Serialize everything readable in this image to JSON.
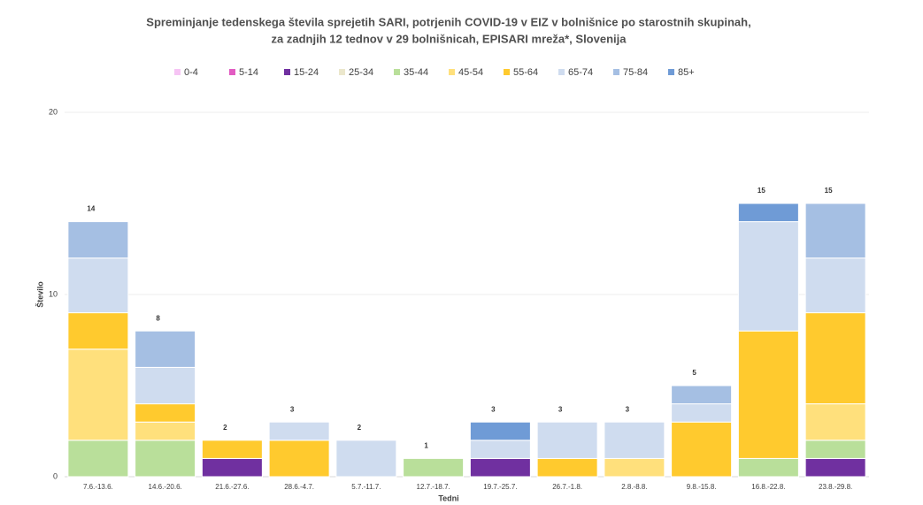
{
  "chart_data": {
    "type": "stacked_bar",
    "title": [
      "Spreminjanje tedenskega števila sprejetih SARI, potrjenih COVID-19 v EIZ v bolnišnice po starostnih skupinah,",
      "za zadnjih 12 tednov v 29 bolnišnicah, EPISARI mreža*, Slovenija"
    ],
    "x_label": "Tedni",
    "y_label": "Število",
    "categories": [
      "7.6.-13.6.",
      "14.6.-20.6.",
      "21.6.-27.6.",
      "28.6.-4.7.",
      "5.7.-11.7.",
      "12.7.-18.7.",
      "19.7.-25.7.",
      "26.7.-1.8.",
      "2.8.-8.8.",
      "9.8.-15.8.",
      "16.8.-22.8.",
      "23.8.-29.8."
    ],
    "series": [
      {
        "name": "0-4",
        "color": "#f6c4f4",
        "values": [
          0,
          0,
          0,
          0,
          0,
          0,
          0,
          0,
          0,
          0,
          0,
          0
        ]
      },
      {
        "name": "5-14",
        "color": "#e25cc2",
        "values": [
          0,
          0,
          0,
          0,
          0,
          0,
          0,
          0,
          0,
          0,
          0,
          0
        ]
      },
      {
        "name": "15-24",
        "color": "#7030a0",
        "values": [
          0,
          0,
          1,
          0,
          0,
          0,
          1,
          0,
          0,
          0,
          0,
          1
        ]
      },
      {
        "name": "25-34",
        "color": "#ebe7cc",
        "values": [
          0,
          0,
          0,
          0,
          0,
          0,
          0,
          0,
          0,
          0,
          0,
          0
        ]
      },
      {
        "name": "35-44",
        "color": "#b9df9a",
        "values": [
          2,
          2,
          0,
          0,
          0,
          1,
          0,
          0,
          0,
          0,
          1,
          1
        ]
      },
      {
        "name": "45-54",
        "color": "#ffe07c",
        "values": [
          5,
          1,
          0,
          0,
          0,
          0,
          0,
          0,
          1,
          0,
          0,
          2
        ]
      },
      {
        "name": "55-64",
        "color": "#ffca2e",
        "values": [
          2,
          1,
          1,
          2,
          0,
          0,
          0,
          1,
          0,
          3,
          7,
          5
        ]
      },
      {
        "name": "65-74",
        "color": "#cfdcef",
        "values": [
          3,
          2,
          0,
          1,
          2,
          0,
          1,
          2,
          2,
          1,
          6,
          3
        ]
      },
      {
        "name": "75-84",
        "color": "#a5bfe3",
        "values": [
          2,
          2,
          0,
          0,
          0,
          0,
          0,
          0,
          0,
          1,
          0,
          3
        ]
      },
      {
        "name": "85+",
        "color": "#6f9bd6",
        "values": [
          0,
          0,
          0,
          0,
          0,
          0,
          1,
          0,
          0,
          0,
          1,
          0
        ]
      }
    ],
    "totals": [
      14,
      8,
      2,
      3,
      2,
      1,
      3,
      3,
      3,
      5,
      15,
      15
    ],
    "ylim": [
      0,
      20
    ],
    "yticks": [
      0,
      10,
      20
    ],
    "grid": true,
    "legend": "top"
  }
}
